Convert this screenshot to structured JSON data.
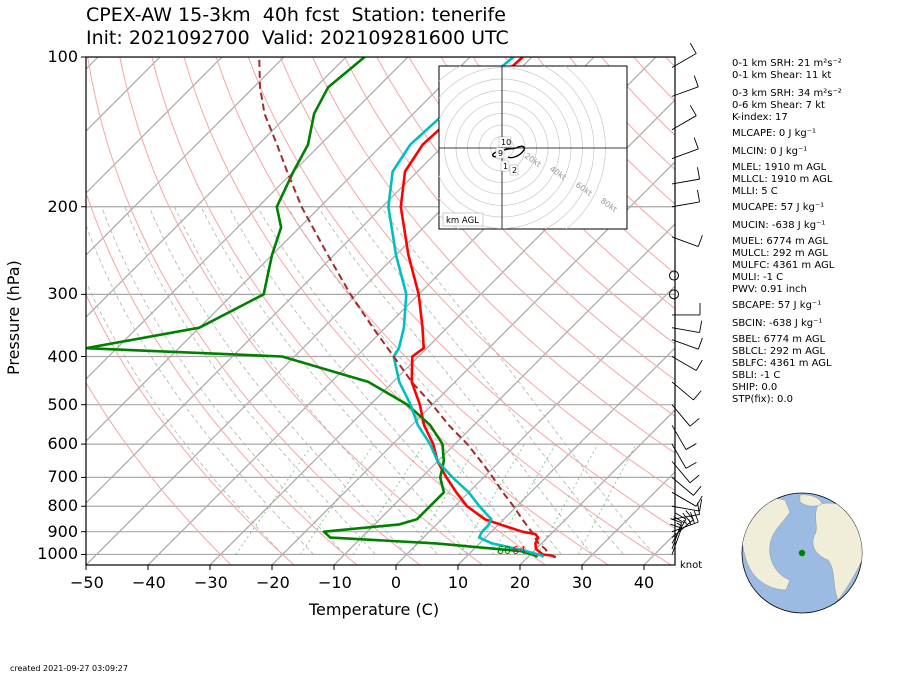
{
  "title_line1": "CPEX-AW 15-3km  40h fcst  Station: tenerife",
  "title_line2": "Init: 2021092700  Valid: 202109281600 UTC",
  "ylabel": "Pressure (hPa)",
  "xlabel": "Temperature (C)",
  "footer": "created 2021-09-27 03:09:27",
  "wind_units": "knot",
  "hodograph": {
    "label": "km AGL",
    "height_labels": [
      "10",
      "9",
      "1",
      "2"
    ],
    "ring_labels": [
      "20kt",
      "40kt",
      "60kt",
      "80kt"
    ]
  },
  "parcel_markers": [
    "60",
    "64"
  ],
  "indices": [
    "0-1 km SRH: 21 m²s⁻²",
    "0-1 km Shear: 11 kt",
    "0-3 km SRH: 34 m²s⁻²",
    "0-6 km Shear: 7 kt",
    "K-index: 17",
    "MLCAPE: 0 J kg⁻¹",
    "MLCIN: 0 J kg⁻¹",
    "MLEL: 1910 m AGL",
    "MLLCL: 1910 m AGL",
    "MLLI: 5 C",
    "MUCAPE: 57 J kg⁻¹",
    "MUCIN: -638 J kg⁻¹",
    "MUEL: 6774 m AGL",
    "MULCL: 292 m AGL",
    "MULFC: 4361 m AGL",
    "MULI: -1 C",
    "PWV: 0.91 inch",
    "SBCAPE: 57 J kg⁻¹",
    "SBCIN: -638 J kg⁻¹",
    "SBEL: 6774 m AGL",
    "SBLCL: 292 m AGL",
    "SBLFC: 4361 m AGL",
    "SBLI: -1 C",
    "SHIP: 0.0",
    "STP(fix): 0.0"
  ],
  "colors": {
    "temperature": "#ff0000",
    "dewpoint": "#008000",
    "wetbulb": "#00bfbf",
    "parcel": "#a52a2a",
    "dry_adiabat": "#f4a6a6",
    "moist_adiabat": "#b0b0b0",
    "mixing_ratio": "#4caf50",
    "isotherm": "#a0a0a0",
    "globe_ocean": "#9bbbe3",
    "globe_land": "#f0eed9",
    "station": "#008000"
  },
  "chart_data": {
    "type": "line",
    "title": "CPEX-AW 15-3km  40h fcst  Station: tenerife",
    "subtitle": "Init: 2021092700  Valid: 202109281600 UTC",
    "xlabel": "Temperature (C)",
    "ylabel": "Pressure (hPa)",
    "xlim": [
      -50,
      45
    ],
    "ylim": [
      1050,
      100
    ],
    "y_scale": "log",
    "x_ticks": [
      -50,
      -40,
      -30,
      -20,
      -10,
      0,
      10,
      20,
      30,
      40
    ],
    "y_ticks": [
      100,
      200,
      300,
      400,
      500,
      600,
      700,
      800,
      900,
      1000
    ],
    "skew": true,
    "series": [
      {
        "name": "temperature",
        "color": "#ff0000",
        "points": [
          [
            1013,
            24.5
          ],
          [
            1005,
            23.5
          ],
          [
            1000,
            22.0
          ],
          [
            975,
            20.0
          ],
          [
            950,
            19.0
          ],
          [
            925,
            18.5
          ],
          [
            910,
            17.5
          ],
          [
            900,
            15.0
          ],
          [
            875,
            11.0
          ],
          [
            850,
            7.0
          ],
          [
            800,
            2.0
          ],
          [
            750,
            -2.0
          ],
          [
            700,
            -6.0
          ],
          [
            650,
            -10.0
          ],
          [
            600,
            -13.5
          ],
          [
            550,
            -18.0
          ],
          [
            500,
            -22.0
          ],
          [
            450,
            -27.0
          ],
          [
            400,
            -31.0
          ],
          [
            385,
            -30.5
          ],
          [
            350,
            -34.0
          ],
          [
            300,
            -40.0
          ],
          [
            250,
            -48.0
          ],
          [
            200,
            -57.0
          ],
          [
            170,
            -62.0
          ],
          [
            150,
            -63.5
          ],
          [
            130,
            -63.0
          ],
          [
            115,
            -62.0
          ],
          [
            100,
            -61.5
          ]
        ]
      },
      {
        "name": "dewpoint",
        "color": "#008000",
        "points": [
          [
            1013,
            21.5
          ],
          [
            1005,
            21.0
          ],
          [
            985,
            18.0
          ],
          [
            950,
            3.0
          ],
          [
            925,
            -15.0
          ],
          [
            900,
            -17.0
          ],
          [
            870,
            -6.0
          ],
          [
            850,
            -4.0
          ],
          [
            800,
            -4.0
          ],
          [
            750,
            -4.0
          ],
          [
            700,
            -7.0
          ],
          [
            650,
            -9.0
          ],
          [
            600,
            -12.0
          ],
          [
            550,
            -17.0
          ],
          [
            500,
            -24.0
          ],
          [
            450,
            -34.0
          ],
          [
            400,
            -52.0
          ],
          [
            385,
            -85.0
          ],
          [
            350,
            -70.0
          ],
          [
            300,
            -65.0
          ],
          [
            250,
            -70.0
          ],
          [
            220,
            -73.0
          ],
          [
            200,
            -77.0
          ],
          [
            170,
            -80.0
          ],
          [
            150,
            -82.0
          ],
          [
            130,
            -86.0
          ],
          [
            115,
            -88.0
          ],
          [
            100,
            -87.0
          ]
        ]
      },
      {
        "name": "wetbulb",
        "color": "#00bfbf",
        "points": [
          [
            1013,
            22.5
          ],
          [
            1005,
            22.0
          ],
          [
            980,
            18.0
          ],
          [
            950,
            12.0
          ],
          [
            925,
            9.0
          ],
          [
            900,
            8.5
          ],
          [
            875,
            8.5
          ],
          [
            850,
            8.0
          ],
          [
            800,
            4.0
          ],
          [
            750,
            0.0
          ],
          [
            700,
            -5.0
          ],
          [
            650,
            -10.0
          ],
          [
            600,
            -14.0
          ],
          [
            550,
            -19.0
          ],
          [
            500,
            -23.5
          ],
          [
            450,
            -29.0
          ],
          [
            400,
            -34.0
          ],
          [
            385,
            -34.5
          ],
          [
            350,
            -37.0
          ],
          [
            300,
            -42.0
          ],
          [
            250,
            -50.0
          ],
          [
            200,
            -59.0
          ],
          [
            170,
            -64.0
          ],
          [
            150,
            -65.5
          ],
          [
            130,
            -65.0
          ],
          [
            115,
            -64.0
          ],
          [
            100,
            -63.0
          ]
        ]
      },
      {
        "name": "parcel",
        "color": "#a52a2a",
        "dashed": true,
        "points": [
          [
            1013,
            24.5
          ],
          [
            1000,
            23.0
          ],
          [
            975,
            21.5
          ],
          [
            950,
            19.5
          ],
          [
            900,
            16.5
          ],
          [
            850,
            13.0
          ],
          [
            800,
            9.5
          ],
          [
            750,
            5.5
          ],
          [
            700,
            1.5
          ],
          [
            650,
            -3.0
          ],
          [
            600,
            -8.0
          ],
          [
            550,
            -14.0
          ],
          [
            500,
            -20.0
          ],
          [
            450,
            -27.0
          ],
          [
            400,
            -34.0
          ],
          [
            350,
            -42.0
          ],
          [
            300,
            -51.0
          ],
          [
            250,
            -61.0
          ],
          [
            200,
            -73.0
          ],
          [
            170,
            -81.0
          ],
          [
            150,
            -87.0
          ],
          [
            130,
            -94.0
          ],
          [
            115,
            -99.0
          ],
          [
            100,
            -104.0
          ]
        ]
      }
    ],
    "wind_barbs": [
      [
        1000,
        200,
        10
      ],
      [
        975,
        200,
        12
      ],
      [
        950,
        210,
        15
      ],
      [
        925,
        230,
        15
      ],
      [
        900,
        250,
        15
      ],
      [
        850,
        260,
        10
      ],
      [
        800,
        280,
        10
      ],
      [
        750,
        300,
        10
      ],
      [
        700,
        310,
        10
      ],
      [
        650,
        320,
        10
      ],
      [
        600,
        330,
        10
      ],
      [
        550,
        330,
        10
      ],
      [
        500,
        320,
        10
      ],
      [
        450,
        310,
        10
      ],
      [
        400,
        300,
        10
      ],
      [
        370,
        290,
        10
      ],
      [
        350,
        280,
        10
      ],
      [
        330,
        270,
        10
      ],
      [
        300,
        0,
        0
      ],
      [
        275,
        0,
        0
      ],
      [
        230,
        290,
        10
      ],
      [
        200,
        260,
        10
      ],
      [
        180,
        260,
        10
      ],
      [
        160,
        250,
        10
      ],
      [
        140,
        240,
        10
      ],
      [
        120,
        250,
        10
      ],
      [
        105,
        240,
        10
      ]
    ],
    "hodograph": {
      "rings_kt": [
        10,
        20,
        30,
        40,
        50,
        60,
        70,
        80,
        90
      ],
      "labels": [
        "km AGL"
      ]
    },
    "station": {
      "lat": 28.3,
      "lon": -16.5
    }
  }
}
